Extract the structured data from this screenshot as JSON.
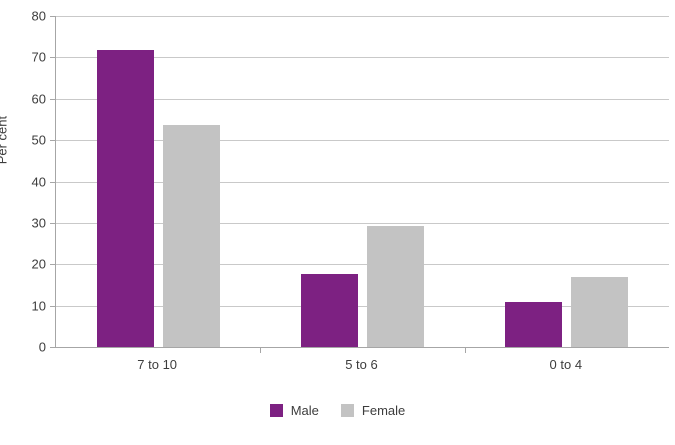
{
  "chart_data": {
    "type": "bar",
    "categories": [
      "7 to 10",
      "5 to 6",
      "0 to 4"
    ],
    "series": [
      {
        "name": "Male",
        "color": "#7d2182",
        "values": [
          71.7,
          17.6,
          10.8
        ]
      },
      {
        "name": "Female",
        "color": "#c3c3c3",
        "values": [
          53.7,
          29.3,
          17.0
        ]
      }
    ],
    "title": "",
    "xlabel": "",
    "ylabel": "Per cent",
    "ylim": [
      0,
      80
    ],
    "yticks": [
      0,
      10,
      20,
      30,
      40,
      50,
      60,
      70,
      80
    ],
    "grid": true,
    "legend_position": "bottom"
  },
  "colors": {
    "male_bar": "#7d2182",
    "female_bar": "#c3c3c3",
    "gridline": "#c9c9c9",
    "axis": "#a6a6a6",
    "text": "#3d3d3d",
    "background": "#ffffff"
  }
}
